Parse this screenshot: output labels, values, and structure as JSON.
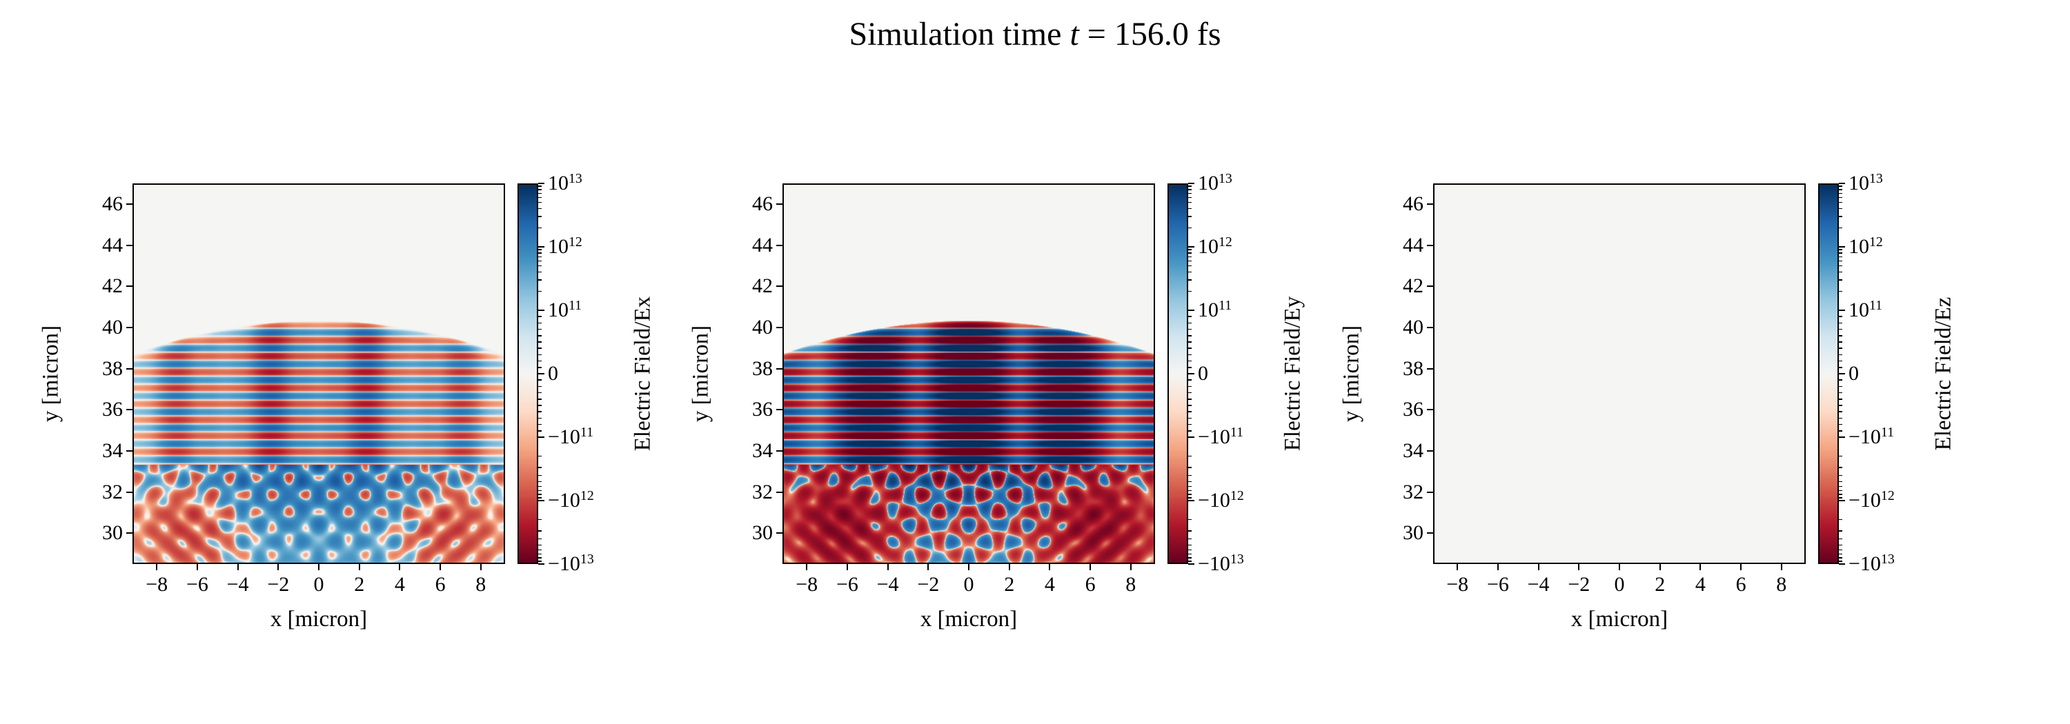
{
  "title": {
    "prefix": "Simulation time ",
    "italic_var": "t",
    "suffix": " = 156.0 fs"
  },
  "colormap": {
    "name": "RdBu",
    "stops": [
      [
        0.0,
        "#67001f"
      ],
      [
        0.1,
        "#b2182b"
      ],
      [
        0.2,
        "#d6604d"
      ],
      [
        0.3,
        "#f4a582"
      ],
      [
        0.4,
        "#fddbc7"
      ],
      [
        0.5,
        "#f5f5f3"
      ],
      [
        0.6,
        "#d1e5f0"
      ],
      [
        0.7,
        "#92c5de"
      ],
      [
        0.8,
        "#4393c3"
      ],
      [
        0.9,
        "#2166ac"
      ],
      [
        1.0,
        "#053061"
      ]
    ]
  },
  "chart_data": [
    {
      "type": "heatmap",
      "field_component": "Ex",
      "xlabel": "x [micron]",
      "ylabel": "y [micron]",
      "xlim": [
        -9.2,
        9.2
      ],
      "ylim": [
        28.5,
        47.0
      ],
      "xtick_values": [
        -8,
        -6,
        -4,
        -2,
        0,
        2,
        4,
        6,
        8
      ],
      "xtick_labels": [
        "−8",
        "−6",
        "−4",
        "−2",
        "0",
        "2",
        "4",
        "6",
        "8"
      ],
      "ytick_values": [
        46,
        44,
        42,
        40,
        38,
        36,
        34,
        32,
        30
      ],
      "ytick_labels": [
        "46",
        "44",
        "42",
        "40",
        "38",
        "36",
        "34",
        "32",
        "30"
      ],
      "colorbar": {
        "label": "Electric Field/Ex",
        "scale": "symlog",
        "vmin": -10000000000000.0,
        "vmax": 10000000000000.0,
        "linthresh": 100000000000.0,
        "ticks": [
          {
            "t": 3,
            "label": "10^13"
          },
          {
            "t": 2,
            "label": "10^12"
          },
          {
            "t": 1,
            "label": "10^11"
          },
          {
            "t": 0,
            "label": "0"
          },
          {
            "t": -1,
            "label": "−10^11"
          },
          {
            "t": -2,
            "label": "−10^12"
          },
          {
            "t": -3,
            "label": "−10^13"
          }
        ]
      },
      "description": "Moderate-amplitude horizontal laser wavefront stripes between y≈33.3 and y≈40.3 with vertical nodes (notably at x=0); light-blue interference checkerboard fan below y≈33.3; near-zero background above the pulse.",
      "field_synthesis": {
        "zero": false,
        "wavelength_um": 0.78,
        "wavefront_top_y": 40.35,
        "wavefront_curvature": 0.019,
        "interface_y": 33.3,
        "turn_on_depth": 0.6,
        "stripe_amplitude": 3200000000000.0,
        "stripe_x_width": 8.5,
        "column_mod_depth": 0.5,
        "column_mod_period": 2.4,
        "node_spacing": 4.7,
        "checker_amplitude": 2600000000000.0,
        "checker_period": 1.5,
        "checker_decay": 2.4,
        "blue_wash": 1600000000000.0,
        "corner_fan": -1600000000000.0
      }
    },
    {
      "type": "heatmap",
      "field_component": "Ey",
      "xlabel": "x [micron]",
      "ylabel": "y [micron]",
      "xlim": [
        -9.2,
        9.2
      ],
      "ylim": [
        28.5,
        47.0
      ],
      "xtick_values": [
        -8,
        -6,
        -4,
        -2,
        0,
        2,
        4,
        6,
        8
      ],
      "xtick_labels": [
        "−8",
        "−6",
        "−4",
        "−2",
        "0",
        "2",
        "4",
        "6",
        "8"
      ],
      "ytick_values": [
        46,
        44,
        42,
        40,
        38,
        36,
        34,
        32,
        30
      ],
      "ytick_labels": [
        "46",
        "44",
        "42",
        "40",
        "38",
        "36",
        "34",
        "32",
        "30"
      ],
      "colorbar": {
        "label": "Electric Field/Ey",
        "scale": "symlog",
        "vmin": -10000000000000.0,
        "vmax": 10000000000000.0,
        "linthresh": 100000000000.0,
        "ticks": [
          {
            "t": 3,
            "label": "10^13"
          },
          {
            "t": 2,
            "label": "10^12"
          },
          {
            "t": 1,
            "label": "10^11"
          },
          {
            "t": 0,
            "label": "0"
          },
          {
            "t": -1,
            "label": "−10^11"
          },
          {
            "t": -2,
            "label": "−10^12"
          },
          {
            "t": -3,
            "label": "−10^13"
          }
        ]
      },
      "description": "Strongly saturated dark blue/red horizontal wavefront stripes between y≈33.3 and the curved pulse front y≈40.3; strong interference checkerboard below y≈33.3 with reddish diagonal fans in the lower corners.",
      "field_synthesis": {
        "zero": false,
        "wavelength_um": 0.78,
        "wavefront_top_y": 40.35,
        "wavefront_curvature": 0.019,
        "interface_y": 33.3,
        "turn_on_depth": 0.6,
        "stripe_amplitude": 26000000000000.0,
        "stripe_x_width": 7.5,
        "column_mod_depth": 0.85,
        "column_mod_period": 5.0,
        "node_spacing": 0,
        "checker_amplitude": 9000000000000.0,
        "checker_period": 1.5,
        "checker_decay": 2.4,
        "blue_wash": 0,
        "corner_fan": -7000000000000.0
      }
    },
    {
      "type": "heatmap",
      "field_component": "Ez",
      "xlabel": "x [micron]",
      "ylabel": "y [micron]",
      "xlim": [
        -9.2,
        9.2
      ],
      "ylim": [
        28.5,
        47.0
      ],
      "xtick_values": [
        -8,
        -6,
        -4,
        -2,
        0,
        2,
        4,
        6,
        8
      ],
      "xtick_labels": [
        "−8",
        "−6",
        "−4",
        "−2",
        "0",
        "2",
        "4",
        "6",
        "8"
      ],
      "ytick_values": [
        46,
        44,
        42,
        40,
        38,
        36,
        34,
        32,
        30
      ],
      "ytick_labels": [
        "46",
        "44",
        "42",
        "40",
        "38",
        "36",
        "34",
        "32",
        "30"
      ],
      "colorbar": {
        "label": "Electric Field/Ez",
        "scale": "symlog",
        "vmin": -10000000000000.0,
        "vmax": 10000000000000.0,
        "linthresh": 100000000000.0,
        "ticks": [
          {
            "t": 3,
            "label": "10^13"
          },
          {
            "t": 2,
            "label": "10^12"
          },
          {
            "t": 1,
            "label": "10^11"
          },
          {
            "t": 0,
            "label": "0"
          },
          {
            "t": -1,
            "label": "−10^11"
          },
          {
            "t": -2,
            "label": "−10^12"
          },
          {
            "t": -3,
            "label": "−10^13"
          }
        ]
      },
      "description": "Ez component is zero everywhere: uniform near-zero (light gray) map.",
      "field_synthesis": {
        "zero": true
      }
    }
  ]
}
